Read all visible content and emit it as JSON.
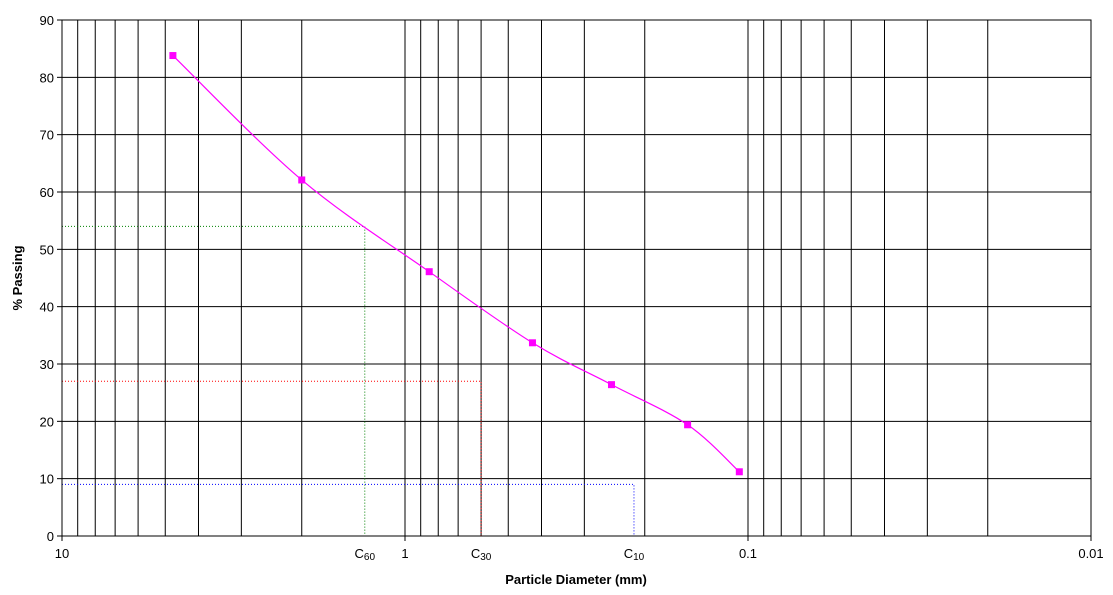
{
  "chart_data": {
    "type": "line",
    "xlabel": "Particle Diameter (mm)",
    "ylabel": "% Passing",
    "x_scale": "log",
    "x_reversed": true,
    "xlim": [
      10,
      0.01
    ],
    "ylim": [
      0,
      90
    ],
    "x_tick_labels": [
      "10",
      "1",
      "0.1",
      "0.01"
    ],
    "y_ticks": [
      0,
      10,
      20,
      30,
      40,
      50,
      60,
      70,
      80,
      90
    ],
    "grid": true,
    "legend": "none",
    "colors": {
      "series": "#ff00ff",
      "c60": "#008000",
      "c30": "#ff0000",
      "c10": "#0000ff"
    },
    "series": [
      {
        "x": [
          4.75,
          2.0,
          0.85,
          0.425,
          0.25,
          0.15,
          0.106
        ],
        "y": [
          83.8,
          62.1,
          46.1,
          33.7,
          26.4,
          19.4,
          11.2
        ]
      }
    ],
    "markers": [
      {
        "label": "C",
        "subscript": "60",
        "x": 1.31,
        "y": 54,
        "color": "#008000"
      },
      {
        "label": "C",
        "subscript": "30",
        "x": 0.6,
        "y": 27,
        "color": "#ff0000"
      },
      {
        "label": "C",
        "subscript": "10",
        "x": 0.215,
        "y": 9,
        "color": "#0000ff"
      }
    ]
  }
}
